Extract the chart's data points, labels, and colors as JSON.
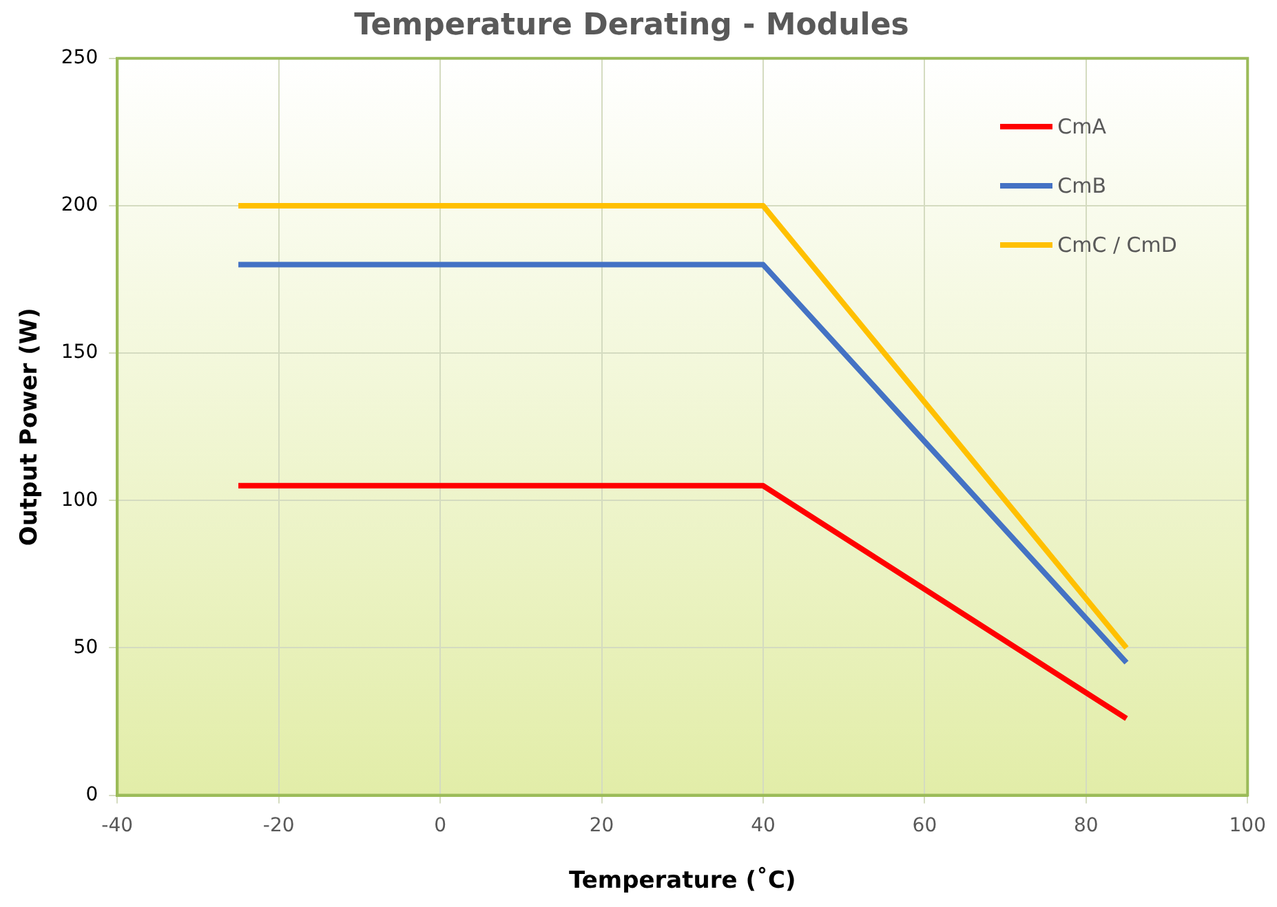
{
  "chart_data": {
    "type": "line",
    "title": "Temperature Derating - Modules",
    "xlabel": "Temperature (˚C)",
    "ylabel": "Output Power (W)",
    "series": [
      {
        "name": "CmA",
        "color": "#ff0000",
        "x": [
          -25,
          40,
          85
        ],
        "values": [
          105,
          105,
          26
        ]
      },
      {
        "name": "CmB",
        "color": "#4472c4",
        "x": [
          -25,
          40,
          85
        ],
        "values": [
          180,
          180,
          45
        ]
      },
      {
        "name": "CmC / CmD",
        "color": "#ffc000",
        "x": [
          -25,
          40,
          85
        ],
        "values": [
          200,
          200,
          50
        ]
      }
    ],
    "xlim": [
      -40,
      100
    ],
    "xticks": [
      -40,
      -20,
      0,
      20,
      40,
      60,
      80,
      100
    ],
    "ylim": [
      0,
      250
    ],
    "yticks": [
      0,
      50,
      100,
      150,
      200,
      250
    ],
    "grid": true,
    "legend": "top right",
    "marker": "none",
    "line_style": "solid"
  }
}
